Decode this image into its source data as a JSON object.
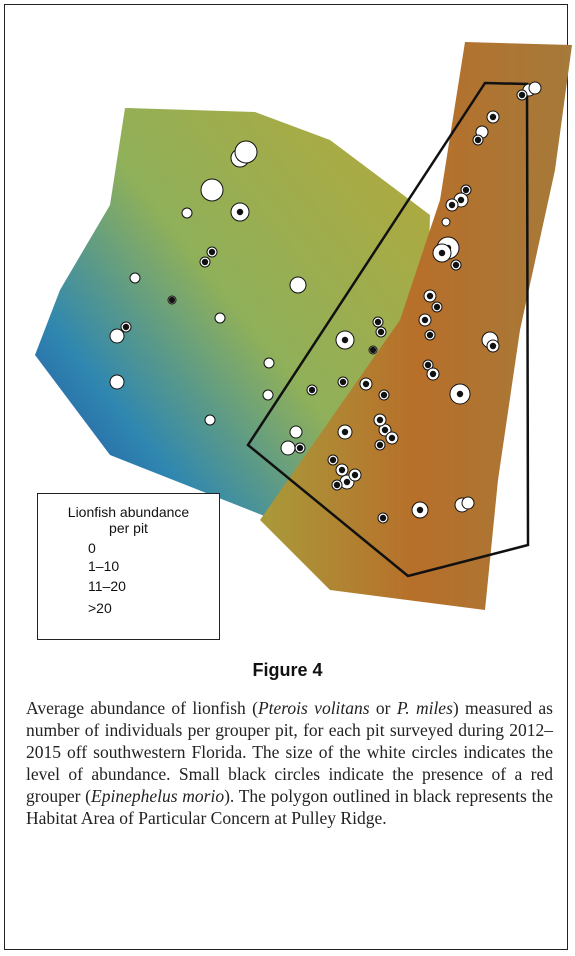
{
  "figure": {
    "legend": {
      "title": "Lionfish abundance per pit",
      "items": [
        "0",
        "1–10",
        "11–20",
        ">20"
      ]
    },
    "label": "Figure 4",
    "caption": [
      "Average abundance of lionfish (",
      "Pterois volitans",
      " or ",
      "P. miles",
      ") measured as number of individuals per grouper pit, for each pit surveyed during 2012–2015 off southwestern Florida. The size of the white circles indicates the level of abundance. Small black circles indicate the presence of a red grouper (",
      "Epinephelus morio",
      "). The polygon outlined in black represents the Habitat Area of Particular Concern at Pulley Ridge."
    ]
  }
}
